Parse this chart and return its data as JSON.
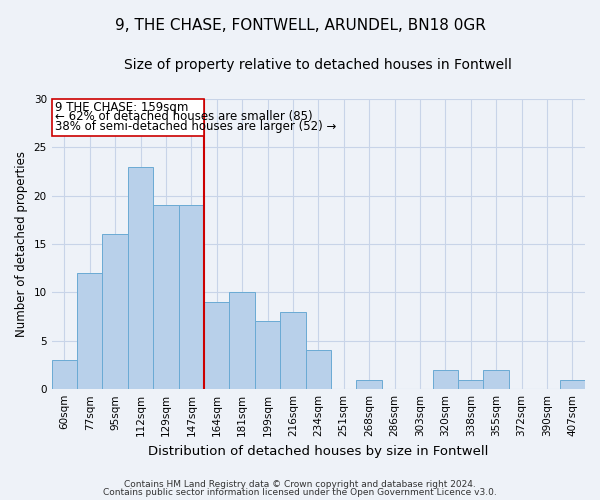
{
  "title": "9, THE CHASE, FONTWELL, ARUNDEL, BN18 0GR",
  "subtitle": "Size of property relative to detached houses in Fontwell",
  "xlabel": "Distribution of detached houses by size in Fontwell",
  "ylabel": "Number of detached properties",
  "bin_labels": [
    "60sqm",
    "77sqm",
    "95sqm",
    "112sqm",
    "129sqm",
    "147sqm",
    "164sqm",
    "181sqm",
    "199sqm",
    "216sqm",
    "234sqm",
    "251sqm",
    "268sqm",
    "286sqm",
    "303sqm",
    "320sqm",
    "338sqm",
    "355sqm",
    "372sqm",
    "390sqm",
    "407sqm"
  ],
  "bar_values": [
    3,
    12,
    16,
    23,
    19,
    19,
    9,
    10,
    7,
    8,
    4,
    0,
    1,
    0,
    0,
    2,
    1,
    2,
    0,
    0,
    1
  ],
  "bar_color": "#b8d0ea",
  "bar_edge_color": "#6aaad4",
  "vline_x_index": 6,
  "vline_color": "#cc0000",
  "annotation_line1": "9 THE CHASE: 159sqm",
  "annotation_line2": "← 62% of detached houses are smaller (85)",
  "annotation_line3": "38% of semi-detached houses are larger (52) →",
  "ylim": [
    0,
    30
  ],
  "yticks": [
    0,
    5,
    10,
    15,
    20,
    25,
    30
  ],
  "footer_line1": "Contains HM Land Registry data © Crown copyright and database right 2024.",
  "footer_line2": "Contains public sector information licensed under the Open Government Licence v3.0.",
  "bg_color": "#eef2f8",
  "plot_bg_color": "#eef2f8",
  "grid_color": "#c8d4e8",
  "title_fontsize": 11,
  "subtitle_fontsize": 10,
  "xlabel_fontsize": 9.5,
  "ylabel_fontsize": 8.5,
  "tick_fontsize": 7.5,
  "footer_fontsize": 6.5,
  "ann_fontsize": 8.5
}
